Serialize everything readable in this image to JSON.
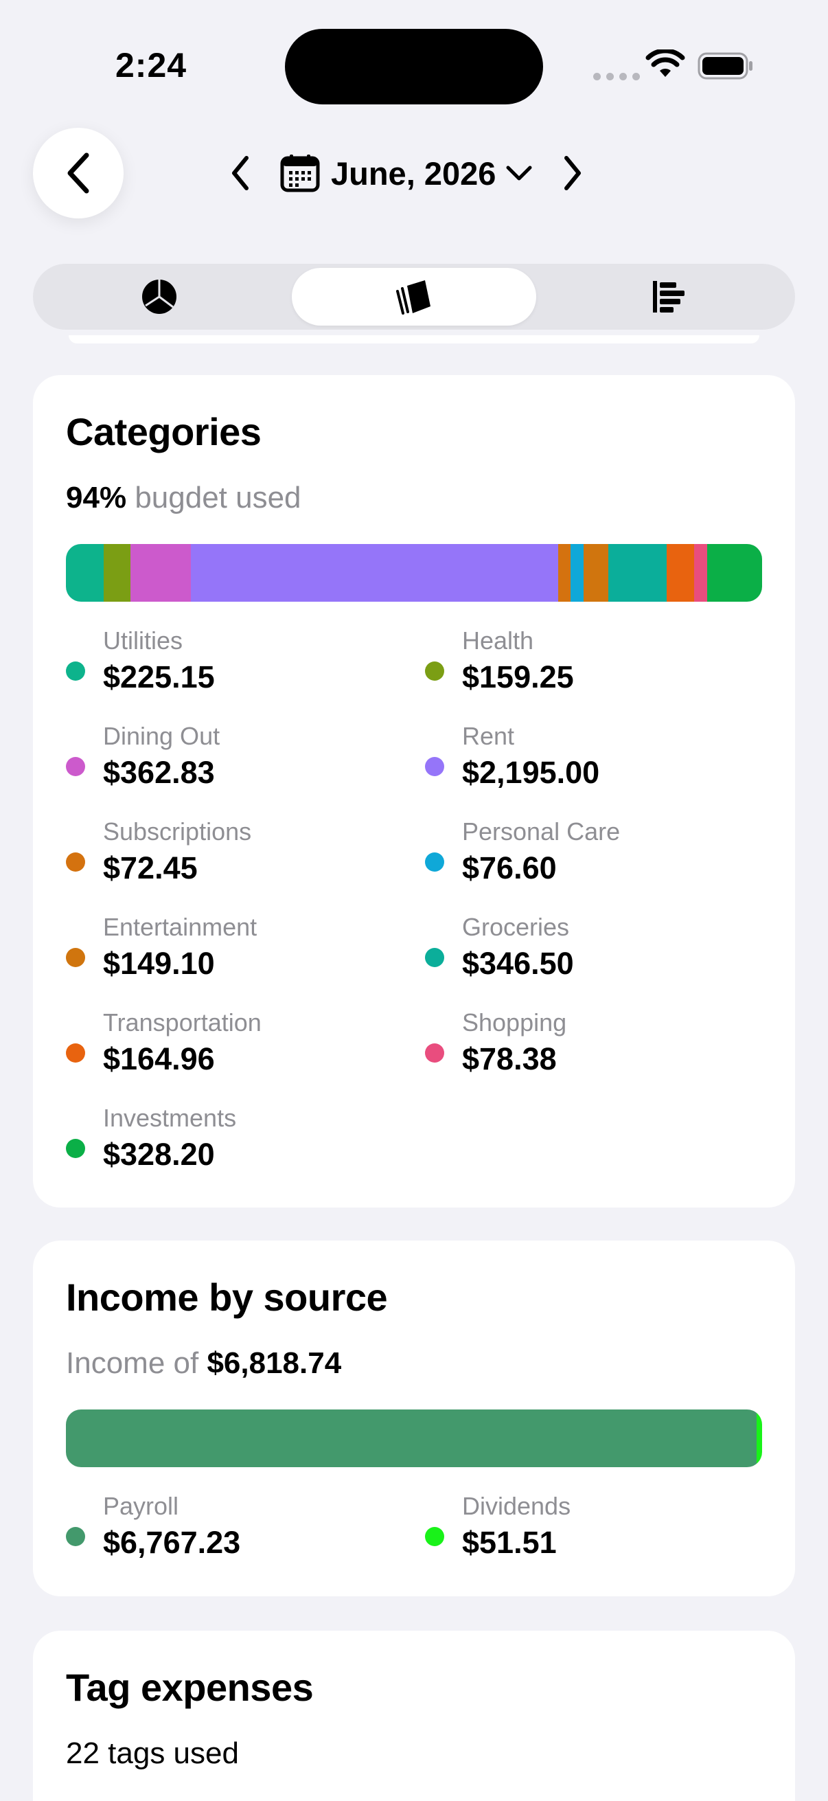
{
  "status_bar": {
    "time": "2:24"
  },
  "header": {
    "month_label": "June, 2026"
  },
  "tabs": [
    {
      "name": "pie",
      "icon": "pie-chart-icon",
      "active": false
    },
    {
      "name": "stacked",
      "icon": "stacked-cards-icon",
      "active": true
    },
    {
      "name": "bars",
      "icon": "horizontal-bars-icon",
      "active": false
    }
  ],
  "categories_card": {
    "title": "Categories",
    "percent": "94%",
    "percent_suffix": "bugdet used",
    "items": [
      {
        "name": "Utilities",
        "amount": "$225.15",
        "color": "#0DB38C"
      },
      {
        "name": "Health",
        "amount": "$159.25",
        "color": "#7B9E14"
      },
      {
        "name": "Dining Out",
        "amount": "$362.83",
        "color": "#CC5ACC"
      },
      {
        "name": "Rent",
        "amount": "$2,195.00",
        "color": "#9575F9"
      },
      {
        "name": "Subscriptions",
        "amount": "$72.45",
        "color": "#D4720F"
      },
      {
        "name": "Personal Care",
        "amount": "$76.60",
        "color": "#0FA8D8"
      },
      {
        "name": "Entertainment",
        "amount": "$149.10",
        "color": "#D0750E"
      },
      {
        "name": "Groceries",
        "amount": "$346.50",
        "color": "#0BAE9A"
      },
      {
        "name": "Transportation",
        "amount": "$164.96",
        "color": "#E8630F"
      },
      {
        "name": "Shopping",
        "amount": "$78.38",
        "color": "#E94D7E"
      },
      {
        "name": "Investments",
        "amount": "$328.20",
        "color": "#0BAF47"
      }
    ]
  },
  "income_card": {
    "title": "Income by source",
    "prefix": "Income of",
    "total": "$6,818.74",
    "items": [
      {
        "name": "Payroll",
        "amount": "$6,767.23",
        "color": "#43996C"
      },
      {
        "name": "Dividends",
        "amount": "$51.51",
        "color": "#19F219"
      }
    ]
  },
  "tag_card": {
    "title": "Tag expenses",
    "summary": "22 tags used"
  }
}
